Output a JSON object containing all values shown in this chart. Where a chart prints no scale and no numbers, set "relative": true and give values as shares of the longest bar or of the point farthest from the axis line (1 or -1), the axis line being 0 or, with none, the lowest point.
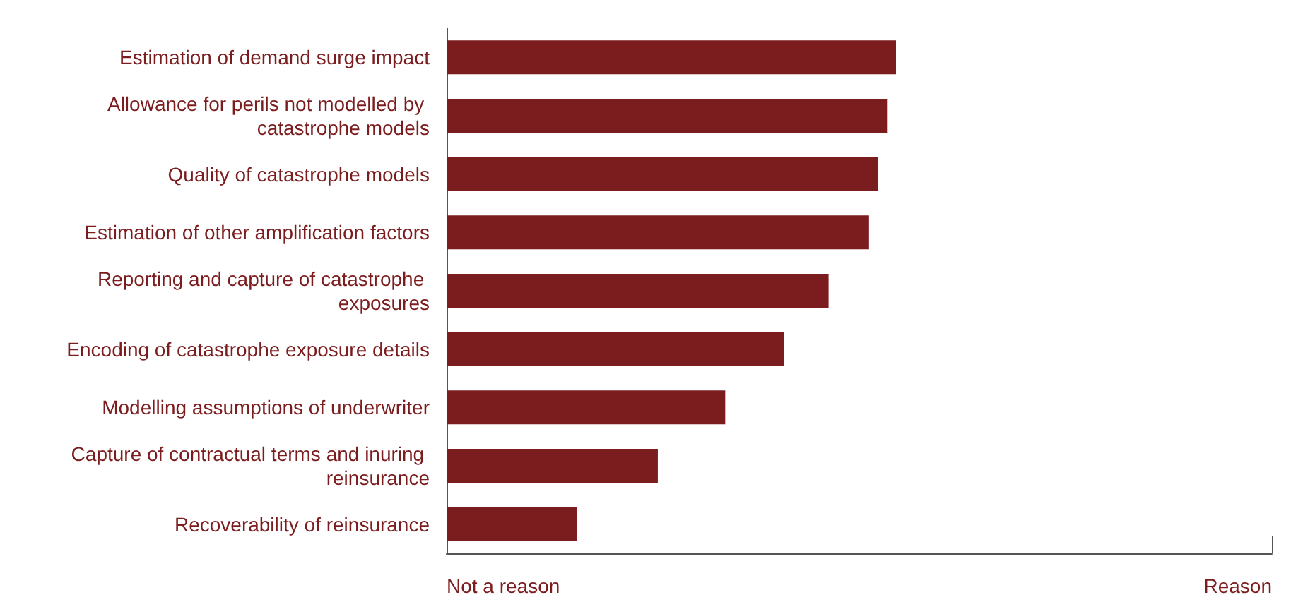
{
  "chart_data": {
    "type": "bar",
    "orientation": "horizontal",
    "relative": true,
    "categories": [
      "Estimation of demand surge impact",
      "Allowance for perils not modelled by catastrophe models",
      "Quality of catastrophe models",
      "Estimation of other amplification factors",
      "Reporting and capture of catastrophe exposures",
      "Encoding of catastrophe exposure details",
      "Modelling assumptions of underwriter",
      "Capture of contractual terms and inuring reinsurance",
      "Recoverability of reinsurance"
    ],
    "values": [
      1,
      0.98,
      0.96,
      0.94,
      0.85,
      0.75,
      0.62,
      0.47,
      0.29
    ],
    "color": "#7b1c1e",
    "annotations": [
      "Not a reason",
      "Reason"
    ],
    "grid": false
  }
}
